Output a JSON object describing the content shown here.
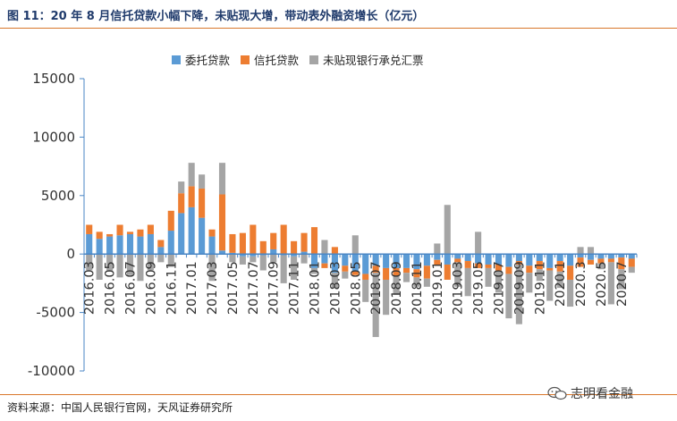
{
  "figure": {
    "title": "图 11：20 年 8 月信托贷款小幅下降，未贴现大增，带动表外融资增长（亿元）",
    "source": "资料来源：中国人民银行官网，天风证券研究所",
    "watermark": "志明看金融",
    "watermark_icon": "wechat-icon"
  },
  "colors": {
    "rule": "#d9772b",
    "title": "#1f3a6b",
    "axis": "#4a86c5",
    "tick_text": "#333333"
  },
  "chart_data": {
    "type": "bar",
    "stacked": true,
    "ylim": [
      -10000,
      15000
    ],
    "yticks": [
      -10000,
      -5000,
      0,
      5000,
      10000,
      15000
    ],
    "ytick_labels": [
      "-10000",
      "-5000",
      "0",
      "5000",
      "10000",
      "15000"
    ],
    "legend_position": "top-center",
    "grid": false,
    "categories": [
      "2016.03",
      "2016.04",
      "2016.05",
      "2016.06",
      "2016.07",
      "2016.08",
      "2016.09",
      "2016.10",
      "2016.11",
      "2016.12",
      "2017.01",
      "2017.02",
      "2017.03",
      "2017.04",
      "2017.05",
      "2017.06",
      "2017.07",
      "2017.08",
      "2017.09",
      "2017.10",
      "2017.11",
      "2017.12",
      "2018.01",
      "2018.02",
      "2018.03",
      "2018.04",
      "2018.05",
      "2018.06",
      "2018.07",
      "2018.08",
      "2018.09",
      "2018.10",
      "2018.11",
      "2018.12",
      "2019.01",
      "2019.02",
      "2019.03",
      "2019.04",
      "2019.05",
      "2019.06",
      "2019.07",
      "2019.08",
      "2019.09",
      "2019.10",
      "2019.11",
      "2019.12",
      "2020.1",
      "2020.2",
      "2020.3",
      "2020.4",
      "2020.5",
      "2020.6",
      "2020.7",
      "2020.8"
    ],
    "tick_labels": [
      "2016.03",
      "",
      "2016.05",
      "",
      "2016.07",
      "",
      "2016.09",
      "",
      "2016.11",
      "",
      "2017.01",
      "",
      "2017.03",
      "",
      "2017.05",
      "",
      "2017.07",
      "",
      "2017.09",
      "",
      "2017.11",
      "",
      "2018.01",
      "",
      "2018.03",
      "",
      "2018.05",
      "",
      "2018.07",
      "",
      "2018.09",
      "",
      "2018.11",
      "",
      "2019.01",
      "",
      "2019.03",
      "",
      "2019.05",
      "",
      "2019.07",
      "",
      "2019.09",
      "",
      "2019.11",
      "",
      "2020.1",
      "",
      "2020.3",
      "",
      "2020.5",
      "",
      "2020.7",
      ""
    ],
    "series": [
      {
        "name": "委托贷款",
        "color": "#5b9bd5",
        "values": [
          1700,
          1300,
          1500,
          1600,
          1700,
          1500,
          1700,
          600,
          2000,
          3500,
          4000,
          3100,
          1500,
          300,
          100,
          -200,
          -200,
          -100,
          400,
          -100,
          -200,
          200,
          -1200,
          -800,
          -1600,
          -1000,
          -1500,
          -1700,
          -1000,
          -1200,
          -1200,
          -1200,
          -1300,
          -1000,
          -500,
          -900,
          -400,
          -600,
          -800,
          -900,
          -900,
          -1100,
          -600,
          -1000,
          -600,
          -1200,
          -600,
          -1000,
          -300,
          -500,
          -400,
          -400,
          -300,
          -400
        ]
      },
      {
        "name": "信托贷款",
        "color": "#ed7d31",
        "values": [
          800,
          600,
          200,
          900,
          200,
          600,
          800,
          600,
          1700,
          1700,
          1800,
          2500,
          600,
          4800,
          1600,
          1800,
          2500,
          1100,
          1400,
          2500,
          1100,
          1600,
          2300,
          -400,
          600,
          -500,
          -300,
          -500,
          -600,
          -1000,
          -700,
          -400,
          -700,
          -1100,
          -500,
          -1300,
          -300,
          -600,
          -400,
          -300,
          -500,
          -600,
          -300,
          -600,
          -700,
          -200,
          -900,
          -1200,
          -800,
          -400,
          -400,
          -300,
          -1000,
          -700
        ]
      },
      {
        "name": "未贴现银行承兑汇票",
        "color": "#a5a5a5",
        "values": [
          -1400,
          -2200,
          -1500,
          -2000,
          -1800,
          -2300,
          -1400,
          -700,
          -1100,
          1000,
          2000,
          1200,
          -2300,
          2700,
          -700,
          -700,
          -500,
          -1300,
          -700,
          -2400,
          -2000,
          -800,
          -500,
          1200,
          -1300,
          -600,
          1600,
          -1900,
          -5500,
          -3000,
          -1600,
          -800,
          -800,
          -700,
          900,
          4200,
          -2100,
          -2400,
          1900,
          -1600,
          -1900,
          -3800,
          -5100,
          -1700,
          -1000,
          -2600,
          -1400,
          -2300,
          600,
          600,
          -500,
          -3600,
          -1700,
          -500
        ]
      }
    ]
  }
}
